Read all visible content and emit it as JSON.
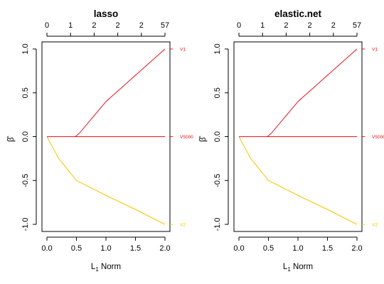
{
  "chart_data": [
    {
      "type": "line",
      "title": "lasso",
      "xlabel": "L1 Norm",
      "xlabel_main": "L",
      "xlabel_sub": "1",
      "xlabel_rest": " Norm",
      "ylabel": "β̂",
      "xlim": [
        0,
        2
      ],
      "ylim": [
        -1,
        1
      ],
      "x_ticks": [
        "0.0",
        "0.5",
        "1.0",
        "1.5",
        "2.0"
      ],
      "y_ticks": [
        "-1.0",
        "-0.5",
        "0.0",
        "0.5",
        "1.0"
      ],
      "top_axis_ticks": [
        "0",
        "1",
        "2",
        "2",
        "2",
        "57"
      ],
      "series": [
        {
          "name": "V1",
          "color": "#e8141c",
          "x": [
            0,
            0.48,
            0.55,
            1.0,
            1.5,
            2.0
          ],
          "y": [
            0,
            0,
            0.04,
            0.4,
            0.7,
            1.0
          ]
        },
        {
          "name": "V2",
          "color": "#f5c400",
          "x": [
            0,
            0.2,
            0.5,
            1.0,
            1.5,
            2.0
          ],
          "y": [
            0,
            -0.25,
            -0.5,
            -0.67,
            -0.83,
            -1.0
          ]
        },
        {
          "name": "",
          "color": "#e8141c",
          "x": [
            0,
            2.0
          ],
          "y": [
            0,
            0
          ]
        }
      ],
      "end_labels": [
        {
          "text": "V1",
          "y": 1.0,
          "color": "#e8141c"
        },
        {
          "text": "V5000",
          "y": 0.0,
          "color": "#e8141c"
        },
        {
          "text": "V2",
          "y": -1.0,
          "color": "#f5c400"
        }
      ]
    },
    {
      "type": "line",
      "title": "elastic.net",
      "xlabel": "L1 Norm",
      "xlabel_main": "L",
      "xlabel_sub": "1",
      "xlabel_rest": " Norm",
      "ylabel": "β̂",
      "xlim": [
        0,
        2
      ],
      "ylim": [
        -1,
        1
      ],
      "x_ticks": [
        "0.0",
        "0.5",
        "1.0",
        "1.5",
        "2.0"
      ],
      "y_ticks": [
        "-1.0",
        "-0.5",
        "0.0",
        "0.5",
        "1.0"
      ],
      "top_axis_ticks": [
        "0",
        "1",
        "2",
        "2",
        "2",
        "57"
      ],
      "series": [
        {
          "name": "V1",
          "color": "#e8141c",
          "x": [
            0,
            0.48,
            0.55,
            1.0,
            1.5,
            2.0
          ],
          "y": [
            0,
            0,
            0.04,
            0.4,
            0.7,
            1.0
          ]
        },
        {
          "name": "V2",
          "color": "#f5c400",
          "x": [
            0,
            0.2,
            0.5,
            1.0,
            1.5,
            2.0
          ],
          "y": [
            0,
            -0.25,
            -0.5,
            -0.67,
            -0.83,
            -1.0
          ]
        },
        {
          "name": "",
          "color": "#e8141c",
          "x": [
            0,
            2.0
          ],
          "y": [
            0,
            0
          ]
        }
      ],
      "end_labels": [
        {
          "text": "V1",
          "y": 1.0,
          "color": "#e8141c"
        },
        {
          "text": "V5000",
          "y": 0.0,
          "color": "#e8141c"
        },
        {
          "text": "V2",
          "y": -1.0,
          "color": "#f5c400"
        }
      ]
    }
  ]
}
